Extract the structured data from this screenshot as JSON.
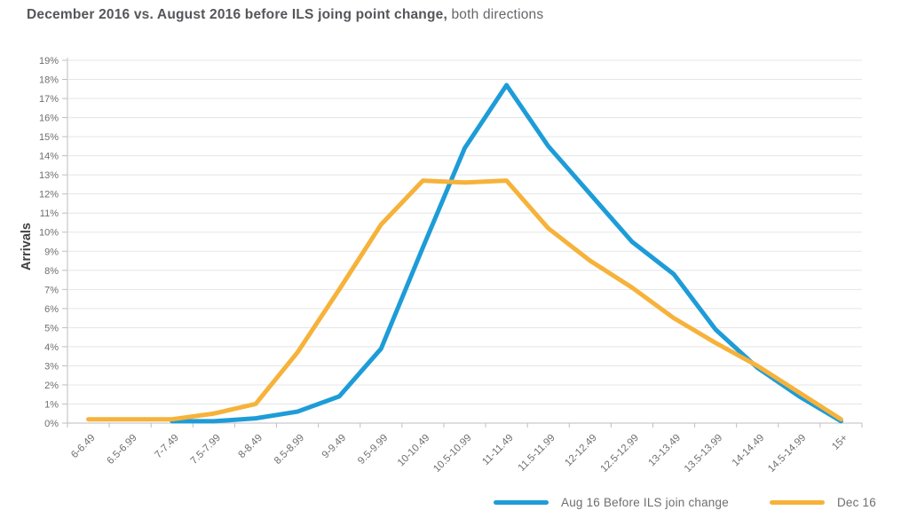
{
  "title": {
    "main": "December 2016 vs. August 2016 before ILS joing point change,",
    "suffix": " both directions"
  },
  "chart_data": {
    "type": "line",
    "title": "December 2016 vs. August 2016 before ILS joing point change, both directions",
    "xlabel": "",
    "ylabel": "Arrivals",
    "ylim": [
      0,
      19
    ],
    "y_tick_step": 1,
    "y_tick_format": "percent",
    "grid": true,
    "legend_position": "bottom-right",
    "categories": [
      "6-6.49",
      "6.5-6.99",
      "7-7.49",
      "7.5-7.99",
      "8-8.49",
      "8.5-8.99",
      "9-9.49",
      "9.5-9.99",
      "10-10.49",
      "10.5-10.99",
      "11-11.49",
      "11.5-11.99",
      "12-12.49",
      "12.5-12.99",
      "13-13.49",
      "13.5-13.99",
      "14-14.49",
      "14.5-14.99",
      "15+"
    ],
    "series": [
      {
        "id": "aug16",
        "name": "Aug 16 Before ILS join change",
        "color": "#1d9cd8",
        "values": [
          null,
          null,
          0.1,
          0.1,
          0.25,
          0.6,
          1.4,
          3.9,
          9.2,
          14.4,
          17.7,
          14.5,
          12.0,
          9.5,
          7.8,
          4.9,
          2.9,
          1.4,
          0.1
        ]
      },
      {
        "id": "dec16",
        "name": "Dec 16",
        "color": "#f6b23a",
        "values": [
          0.2,
          0.2,
          0.2,
          0.5,
          1.0,
          3.7,
          7.0,
          10.4,
          12.7,
          12.6,
          12.7,
          10.2,
          8.5,
          7.1,
          5.5,
          4.2,
          3.0,
          1.6,
          0.2
        ]
      }
    ]
  }
}
